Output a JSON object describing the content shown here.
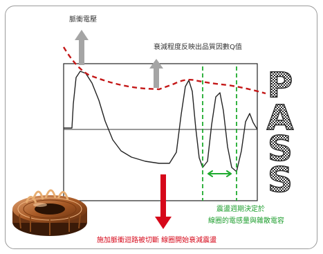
{
  "labels": {
    "pulse_voltage": "脈衝電壓",
    "decay_q": "衰減程度反映出品質因數Q值",
    "oscillation_line1": "震盪週期決定於",
    "oscillation_line2": "線圈的電感量與雜散電容",
    "cutoff": "施加脈衝迴路被切斷  線圈開始衰減震盪"
  },
  "pass_letters": [
    "P",
    "A",
    "S",
    "S"
  ],
  "colors": {
    "waveform": "#222222",
    "envelope": "#c41818",
    "red_arrow": "#d6081a",
    "gray_arrow": "#a5a5a5",
    "green": "#1eab2e",
    "pass_fill": "#d2d2d2"
  }
}
